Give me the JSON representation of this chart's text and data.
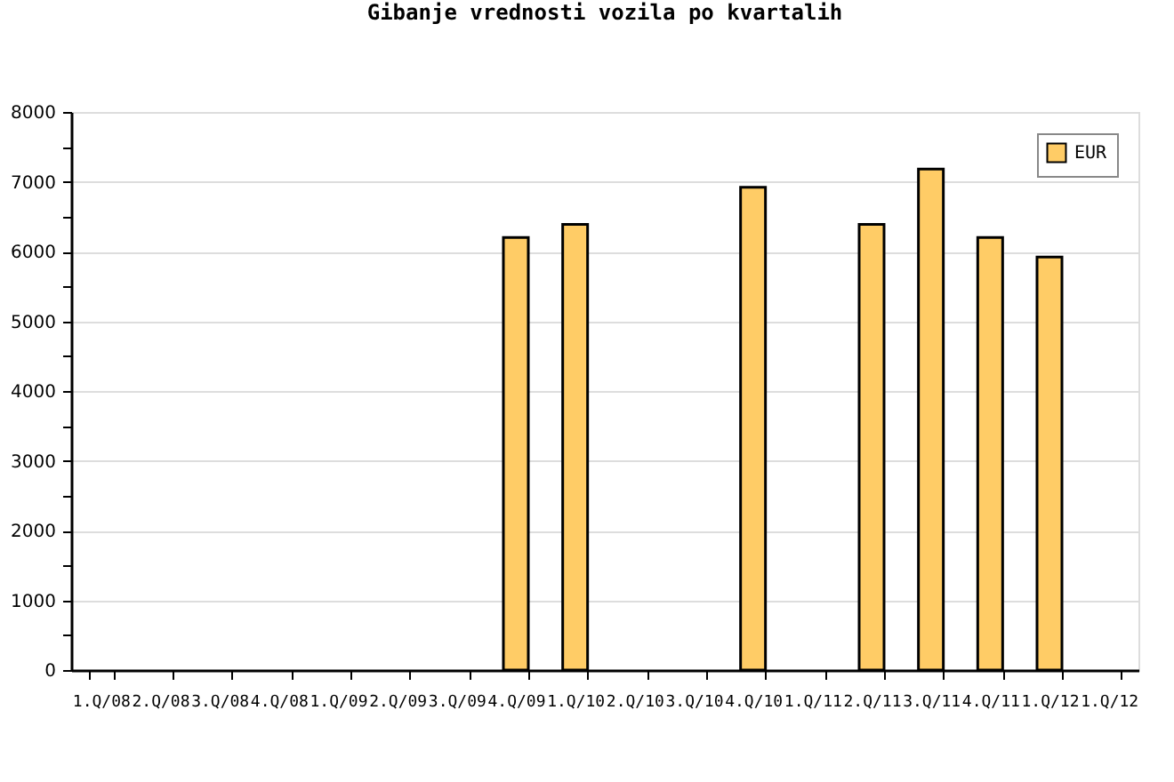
{
  "chart_data": {
    "type": "bar",
    "title": "Gibanje vrednosti vozila po kvartalih",
    "categories": [
      "1.Q/08",
      "2.Q/08",
      "3.Q/08",
      "4.Q/08",
      "1.Q/09",
      "2.Q/09",
      "3.Q/09",
      "4.Q/09",
      "1.Q/10",
      "2.Q/10",
      "3.Q/10",
      "4.Q/10",
      "1.Q/11",
      "2.Q/11",
      "3.Q/11",
      "4.Q/11",
      "1.Q/12",
      "1.Q/12"
    ],
    "series": [
      {
        "name": "EUR",
        "color": "#ffcc66",
        "values": [
          null,
          null,
          null,
          null,
          null,
          null,
          null,
          6200,
          6390,
          null,
          null,
          6920,
          null,
          6390,
          7180,
          6200,
          5920,
          null
        ]
      }
    ],
    "ylim": [
      0,
      8000
    ],
    "yticks": [
      0,
      {
        "value": 500,
        "label": null
      },
      1000,
      {
        "value": 1500,
        "label": null
      },
      2000,
      {
        "value": 2500,
        "label": null
      },
      3000,
      {
        "value": 3500,
        "label": null
      },
      4000,
      {
        "value": 4500,
        "label": null
      },
      5000,
      {
        "value": 5500,
        "label": null
      },
      6000,
      {
        "value": 6500,
        "label": null
      },
      7000,
      {
        "value": 7500,
        "label": null
      },
      8000
    ],
    "grid": "y",
    "legend": "top right"
  }
}
